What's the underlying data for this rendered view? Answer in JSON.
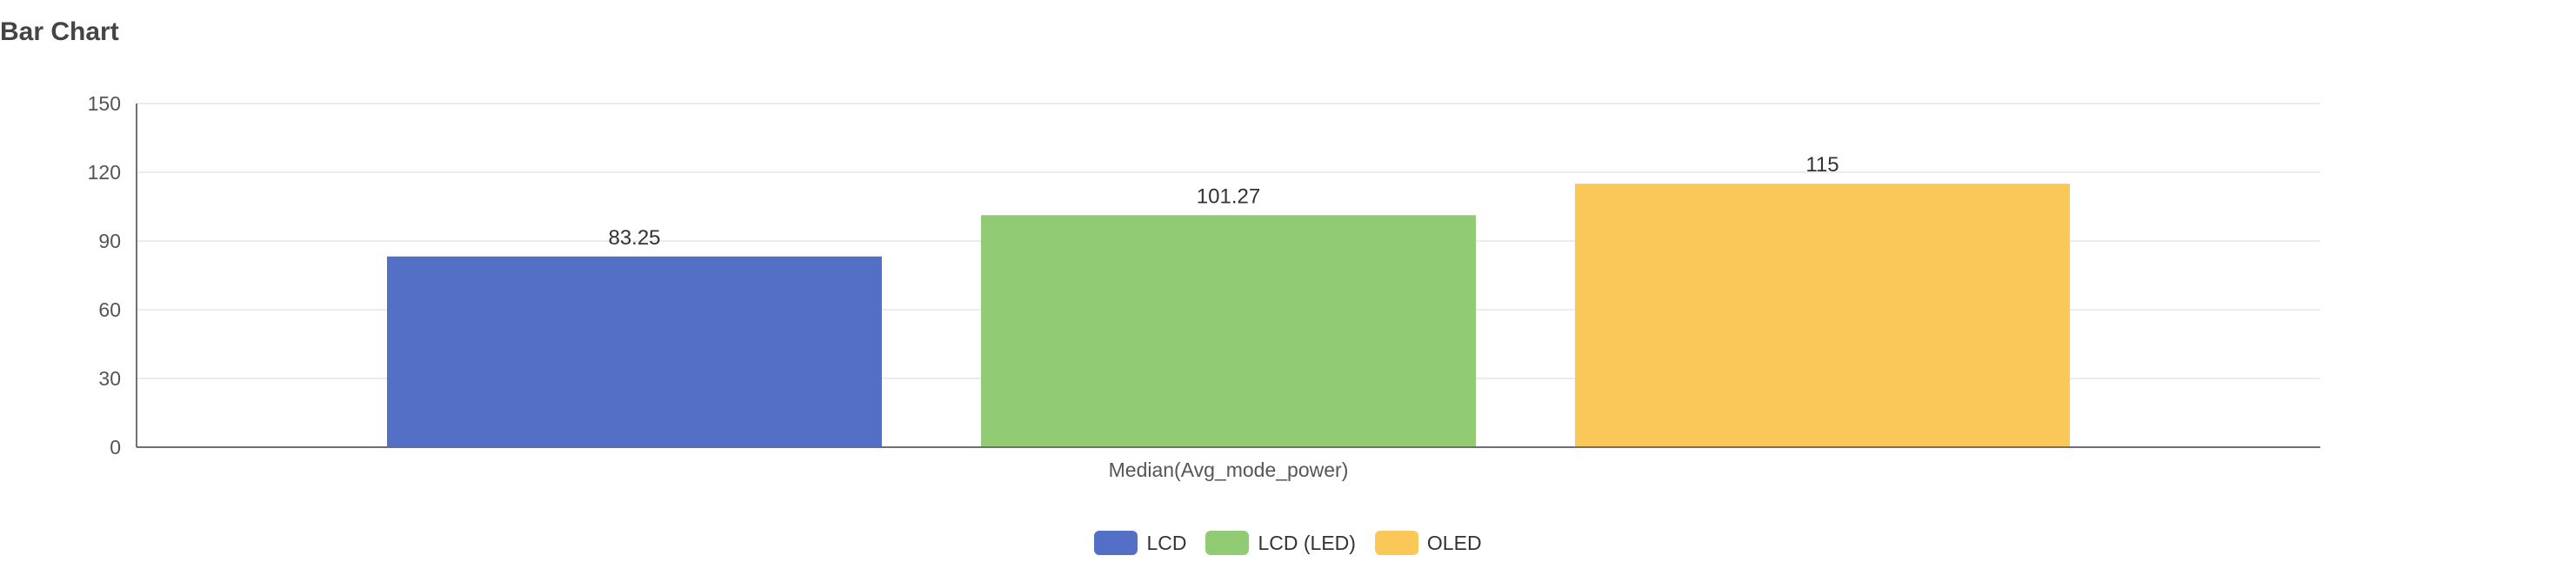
{
  "chart_data": {
    "type": "bar",
    "title": "Bar Chart",
    "xlabel": "Median(Avg_mode_power)",
    "ylabel": "",
    "ylim": [
      0,
      150
    ],
    "yticks": [
      0,
      30,
      60,
      90,
      120,
      150
    ],
    "grid": true,
    "legend_position": "bottom-center",
    "categories": [
      "Median(Avg_mode_power)"
    ],
    "series": [
      {
        "name": "LCD",
        "values": [
          83.25
        ],
        "label": "83.25",
        "color": "#5470c6"
      },
      {
        "name": "LCD (LED)",
        "values": [
          101.27
        ],
        "label": "101.27",
        "color": "#91cc75"
      },
      {
        "name": "OLED",
        "values": [
          115
        ],
        "label": "115",
        "color": "#fac858"
      }
    ]
  }
}
